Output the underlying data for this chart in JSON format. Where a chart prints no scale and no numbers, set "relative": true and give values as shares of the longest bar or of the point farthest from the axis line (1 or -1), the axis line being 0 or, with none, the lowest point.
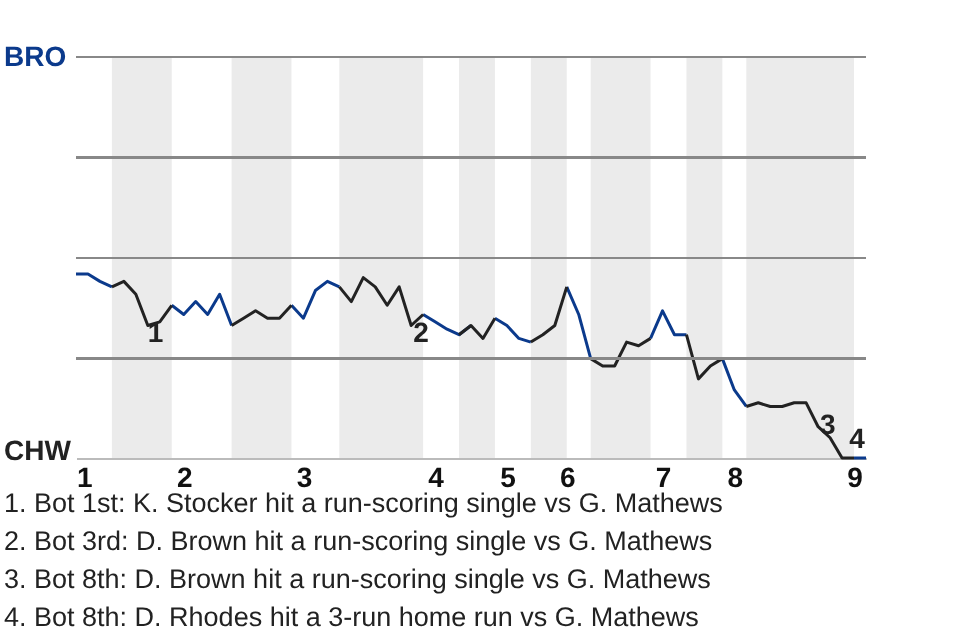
{
  "chart_data": {
    "type": "line",
    "categories": [
      "1",
      null,
      null,
      null,
      null,
      null,
      null,
      null,
      null,
      "2",
      null,
      null,
      null,
      null,
      null,
      null,
      null,
      null,
      null,
      "3",
      null,
      null,
      null,
      null,
      null,
      null,
      null,
      null,
      null,
      null,
      "4",
      null,
      null,
      null,
      null,
      null,
      "5",
      null,
      null,
      null,
      null,
      "6",
      null,
      null,
      null,
      null,
      null,
      null,
      null,
      "7",
      null,
      null,
      null,
      null,
      null,
      "8",
      null,
      null,
      null,
      null,
      null,
      null,
      null,
      null,
      null,
      "9",
      null
    ],
    "relative": true,
    "series": [
      {
        "color": "#0b3a8c",
        "values": [
          1,
          1,
          0.96,
          0.93,
          null,
          null,
          null,
          null,
          0.83,
          0.78,
          0.85,
          0.78,
          0.89,
          0.72,
          null,
          null,
          null,
          null,
          0.83,
          0.76,
          0.91,
          0.96,
          0.93,
          null,
          null,
          null,
          null,
          null,
          null,
          0.78,
          0.74,
          0.7,
          0.67,
          0.72,
          null,
          0.76,
          0.72,
          0.65,
          0.63,
          null,
          null,
          0.93,
          0.78,
          0.54,
          null,
          null,
          null,
          null,
          0.65,
          0.8,
          0.67,
          0.67,
          null,
          null,
          0.54,
          0.37,
          0.28,
          null,
          null,
          null,
          null,
          null,
          null,
          null,
          null,
          0,
          0
        ]
      },
      {
        "color": "#222222",
        "values": [
          null,
          null,
          null,
          0.93,
          0.96,
          0.89,
          0.72,
          0.74,
          0.83,
          null,
          null,
          null,
          null,
          0.72,
          0.76,
          0.8,
          0.76,
          0.76,
          0.83,
          null,
          null,
          null,
          0.93,
          0.85,
          0.98,
          0.93,
          0.83,
          0.93,
          0.72,
          0.78,
          null,
          null,
          0.67,
          0.72,
          0.65,
          0.76,
          null,
          null,
          0.63,
          0.67,
          0.72,
          0.93,
          null,
          0.54,
          0.5,
          0.5,
          0.63,
          0.61,
          0.65,
          null,
          null,
          0.67,
          0.43,
          0.5,
          0.54,
          null,
          0.28,
          0.3,
          0.28,
          0.28,
          0.3,
          0.3,
          0.17,
          0.11,
          0,
          0,
          null
        ]
      }
    ],
    "annotations": [
      "BRO",
      "CHW",
      "1",
      "2",
      "3",
      "4",
      "1. Bot 1st: K. Stocker hit a run-scoring single vs G. Mathews",
      "2. Bot 3rd: D. Brown hit a run-scoring single vs G. Mathews",
      "3. Bot 8th: D. Brown hit a run-scoring single vs G. Mathews",
      "4. Bot 8th: D. Rhodes hit a 3-run home run vs G. Mathews"
    ]
  }
}
